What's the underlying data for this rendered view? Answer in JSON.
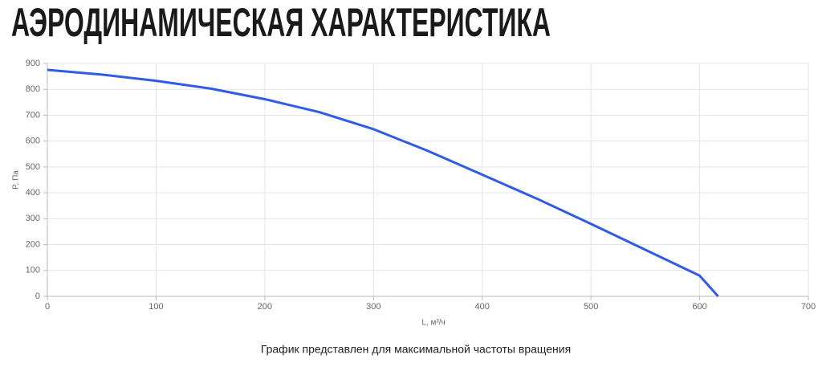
{
  "chart_data": {
    "type": "line",
    "title": "АЭРОДИНАМИЧЕСКАЯ ХАРАКТЕРИСТИКА",
    "x_label": "L, м³/ч",
    "y_label": "P, Па",
    "caption": "График представлен для максимальной частоты вращения",
    "x": [
      0,
      50,
      100,
      150,
      200,
      250,
      300,
      350,
      400,
      450,
      500,
      550,
      600,
      617
    ],
    "series": [
      {
        "name": "P",
        "color": "#2f5be8",
        "values": [
          875,
          857,
          833,
          803,
          762,
          712,
          646,
          562,
          470,
          378,
          280,
          180,
          80,
          0
        ]
      }
    ],
    "xlim": [
      0,
      700
    ],
    "xticks": [
      0,
      100,
      200,
      300,
      400,
      500,
      600,
      700
    ],
    "ylim": [
      0,
      900
    ],
    "yticks": [
      0,
      100,
      200,
      300,
      400,
      500,
      600,
      700,
      800,
      900
    ],
    "grid": true
  }
}
